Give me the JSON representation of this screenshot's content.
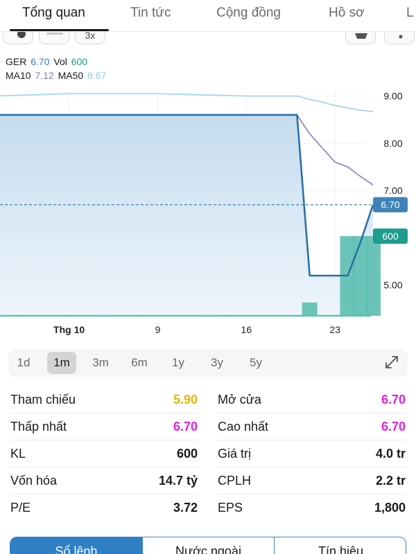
{
  "tabs": [
    {
      "label": "Tổng quan",
      "active": true
    },
    {
      "label": "Tin tức",
      "active": false
    },
    {
      "label": "Cộng đồng",
      "active": false
    },
    {
      "label": "Hồ sơ",
      "active": false
    },
    {
      "label": "L",
      "active": false
    }
  ],
  "toolbar": {
    "interval_label": "3x"
  },
  "legend": {
    "ticker": "GER",
    "price": "6.70",
    "vol_label": "Vol",
    "vol": "600",
    "ma10_label": "MA10",
    "ma10": "7.12",
    "ma50_label": "MA50",
    "ma50": "8.67"
  },
  "colors": {
    "price_line": "#2a6fa8",
    "price_fill": "#c5dcee",
    "ma10": "#8878c8",
    "ma50": "#a6d6ee",
    "volume": "#5fbfb2",
    "price_tag": "#3f82b8",
    "volume_tag": "#1e9c8c",
    "ref_yellow": "#e7b400",
    "magenta": "#e31ee3",
    "accent": "#2e7fc3"
  },
  "chart_data": {
    "type": "line",
    "x": [
      "2023-09-26",
      "2023-10-02",
      "2023-10-09",
      "2023-10-16",
      "2023-10-20",
      "2023-10-21",
      "2023-10-22",
      "2023-10-23",
      "2023-10-24",
      "2023-10-25",
      "2023-10-26"
    ],
    "x_ticks": [
      {
        "date": "2023-10-02",
        "label": "Thg 10"
      },
      {
        "date": "2023-10-09",
        "label": "9"
      },
      {
        "date": "2023-10-16",
        "label": "16"
      },
      {
        "date": "2023-10-23",
        "label": "23"
      }
    ],
    "series": [
      {
        "name": "GER",
        "kind": "area",
        "values": [
          8.6,
          8.6,
          8.6,
          8.6,
          8.6,
          5.2,
          5.2,
          5.2,
          5.2,
          5.9,
          6.7
        ]
      },
      {
        "name": "MA10",
        "kind": "line",
        "values": [
          null,
          null,
          null,
          null,
          8.6,
          8.2,
          7.9,
          7.6,
          7.5,
          7.3,
          7.12
        ]
      },
      {
        "name": "MA50",
        "kind": "line",
        "values": [
          9.0,
          9.05,
          9.05,
          9.0,
          9.0,
          8.93,
          8.87,
          8.8,
          8.75,
          8.7,
          8.67
        ]
      },
      {
        "name": "Vol",
        "kind": "bar",
        "values": [
          0,
          0,
          0,
          0,
          0,
          100,
          0,
          0,
          600,
          600,
          600
        ]
      }
    ],
    "y_ticks": [
      "9.00",
      "8.00",
      "7.00",
      "5.00"
    ],
    "ylim": [
      4.35,
      9.42
    ],
    "volume_max": 600,
    "current_price": 6.7,
    "current_price_label": "6.70",
    "current_volume_label": "600"
  },
  "periods": [
    {
      "label": "1d",
      "active": false
    },
    {
      "label": "1m",
      "active": true
    },
    {
      "label": "3m",
      "active": false
    },
    {
      "label": "6m",
      "active": false
    },
    {
      "label": "1y",
      "active": false
    },
    {
      "label": "3y",
      "active": false
    },
    {
      "label": "5y",
      "active": false
    }
  ],
  "stats": [
    {
      "l_label": "Tham chiếu",
      "l_value": "5.90",
      "l_color": "#e7b400",
      "r_label": "Mở cửa",
      "r_value": "6.70",
      "r_color": "#e31ee3"
    },
    {
      "l_label": "Thấp nhất",
      "l_value": "6.70",
      "l_color": "#e31ee3",
      "r_label": "Cao nhất",
      "r_value": "6.70",
      "r_color": "#e31ee3"
    },
    {
      "l_label": "KL",
      "l_value": "600",
      "l_color": "#1a1a1a",
      "r_label": "Giá trị",
      "r_value": "4.0 tr",
      "r_color": "#1a1a1a"
    },
    {
      "l_label": "Vốn hóa",
      "l_value": "14.7 tỷ",
      "l_color": "#1a1a1a",
      "r_label": "CPLH",
      "r_value": "2.2 tr",
      "r_color": "#1a1a1a"
    },
    {
      "l_label": "P/E",
      "l_value": "3.72",
      "l_color": "#1a1a1a",
      "r_label": "EPS",
      "r_value": "1,800",
      "r_color": "#1a1a1a"
    }
  ],
  "bottom_tabs": [
    {
      "label": "Sổ lệnh",
      "active": true
    },
    {
      "label": "Nước ngoài",
      "active": false
    },
    {
      "label": "Tín hiệu",
      "active": false
    }
  ]
}
